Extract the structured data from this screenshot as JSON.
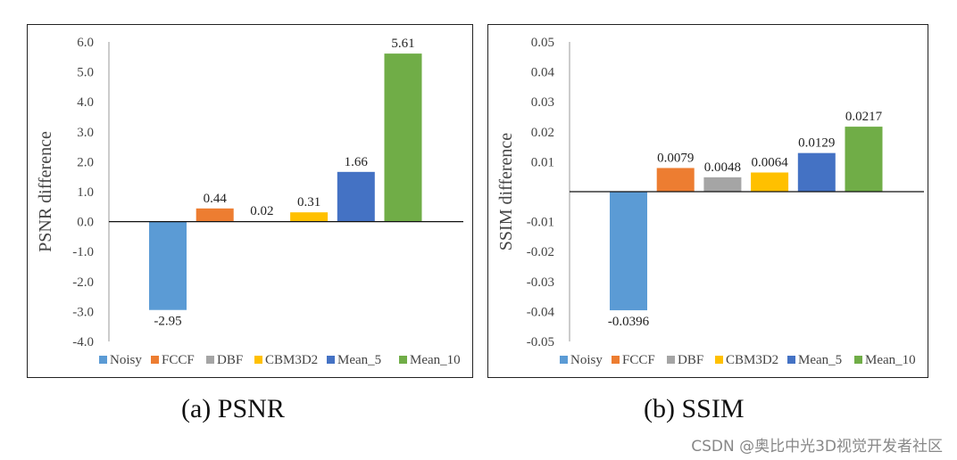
{
  "chart_data": [
    {
      "type": "bar",
      "ylabel": "PSNR difference",
      "ylim": [
        -4.0,
        6.0
      ],
      "yticks": [
        "6.0",
        "5.0",
        "4.0",
        "3.0",
        "2.0",
        "1.0",
        "0.0",
        "-1.0",
        "-2.0",
        "-3.0",
        "-4.0"
      ],
      "categories": [
        "Noisy",
        "FCCF",
        "DBF",
        "CBM3D2",
        "Mean_5",
        "Mean_10"
      ],
      "values": [
        -2.95,
        0.44,
        0.02,
        0.31,
        1.66,
        5.61
      ],
      "value_labels": [
        "-2.95",
        "0.44",
        "0.02",
        "0.31",
        "1.66",
        "5.61"
      ],
      "colors": [
        "#5b9bd5",
        "#ed7d31",
        "#a5a5a5",
        "#ffc000",
        "#4472c4",
        "#70ad47"
      ],
      "caption": "(a)  PSNR"
    },
    {
      "type": "bar",
      "ylabel": "SSIM difference",
      "ylim": [
        -0.05,
        0.05
      ],
      "yticks": [
        "0.05",
        "0.04",
        "0.03",
        "0.02",
        "0.01",
        "-0.01",
        "-0.02",
        "-0.03",
        "-0.04",
        "-0.05"
      ],
      "categories": [
        "Noisy",
        "FCCF",
        "DBF",
        "CBM3D2",
        "Mean_5",
        "Mean_10"
      ],
      "values": [
        -0.0396,
        0.0079,
        0.0048,
        0.0064,
        0.0129,
        0.0217
      ],
      "value_labels": [
        "-0.0396",
        "0.0079",
        "0.0048",
        "0.0064",
        "0.0129",
        "0.0217"
      ],
      "colors": [
        "#5b9bd5",
        "#ed7d31",
        "#a5a5a5",
        "#ffc000",
        "#4472c4",
        "#70ad47"
      ],
      "caption": "(b)  SSIM"
    }
  ],
  "watermark": "CSDN @奥比中光3D视觉开发者社区"
}
